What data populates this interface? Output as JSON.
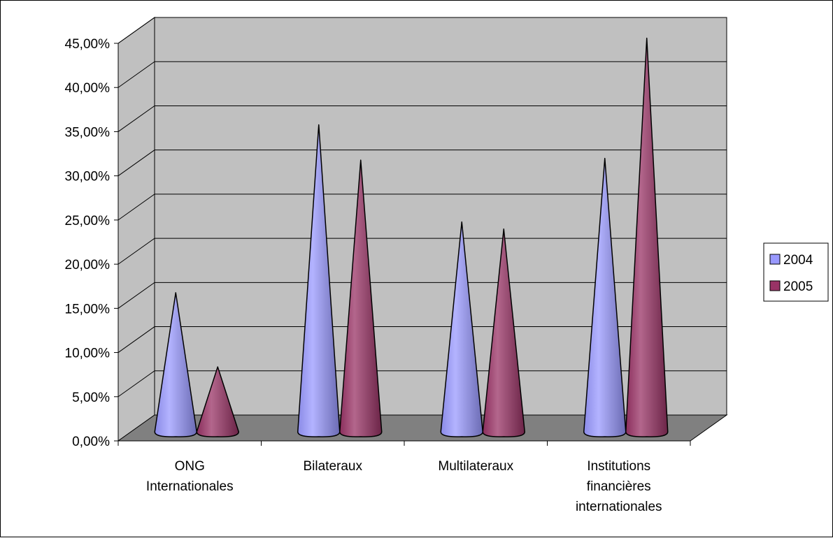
{
  "chart_data": {
    "type": "bar",
    "shape": "cone-3d",
    "categories": [
      [
        "ONG",
        "Internationales"
      ],
      [
        "Bilateraux"
      ],
      [
        "Multilateraux"
      ],
      [
        "Institutions",
        "financières",
        "internationales"
      ]
    ],
    "series": [
      {
        "name": "2004",
        "values": [
          15.0,
          34.0,
          23.0,
          30.2
        ]
      },
      {
        "name": "2005",
        "values": [
          6.6,
          30.0,
          22.2,
          43.8
        ]
      }
    ],
    "y_unit": "%",
    "ylim": [
      0,
      45
    ],
    "yticks": [
      0,
      5,
      10,
      15,
      20,
      25,
      30,
      35,
      40,
      45
    ],
    "ytick_labels": [
      "0,00%",
      "5,00%",
      "10,00%",
      "15,00%",
      "20,00%",
      "25,00%",
      "30,00%",
      "35,00%",
      "40,00%",
      "45,00%"
    ],
    "grid": true,
    "legend_position": "right",
    "colors": {
      "series": [
        "#9999ff",
        "#993366"
      ],
      "wall": "#c0c0c0",
      "floor": "#808080",
      "outline": "#000000"
    }
  }
}
